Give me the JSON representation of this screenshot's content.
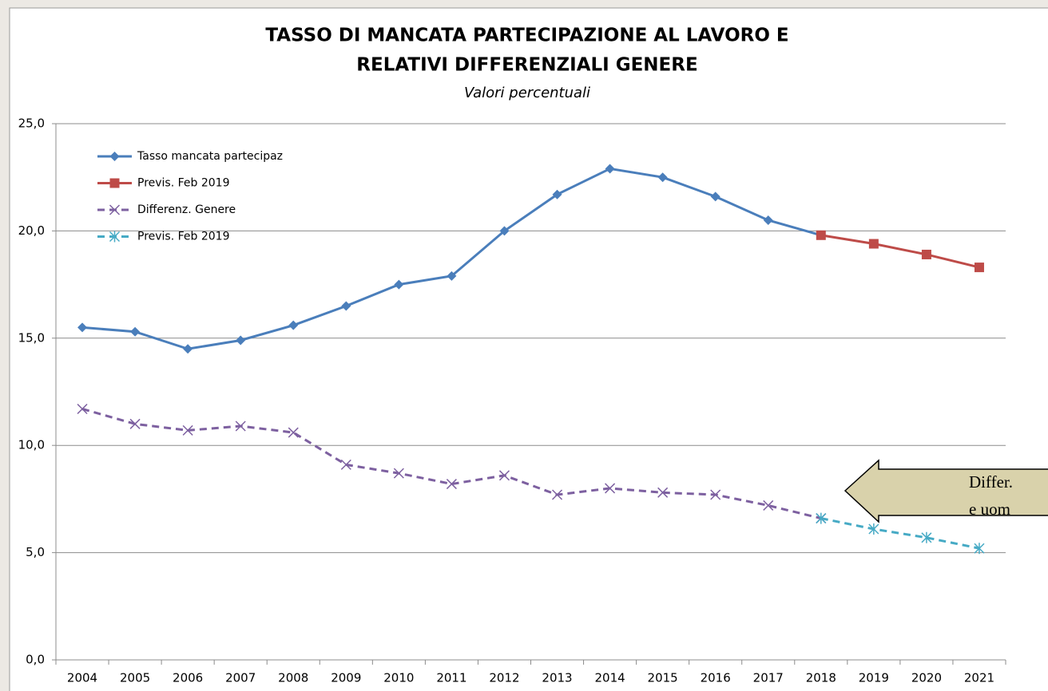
{
  "chart_data": {
    "type": "line",
    "title": [
      "TASSO DI MANCATA PARTECIPAZIONE AL LAVORO E",
      "RELATIVI DIFFERENZIALI GENERE"
    ],
    "subtitle": "Valori percentuali",
    "categories": [
      "2004",
      "2005",
      "2006",
      "2007",
      "2008",
      "2009",
      "2010",
      "2011",
      "2012",
      "2013",
      "2014",
      "2015",
      "2016",
      "2017",
      "2018",
      "2019",
      "2020",
      "2021"
    ],
    "series": [
      {
        "name": "Tasso mancata partecipaz",
        "color": "#4a7ebb",
        "marker": "diamond",
        "dashed": false,
        "values": [
          15.5,
          15.3,
          14.5,
          14.9,
          15.6,
          16.5,
          17.5,
          17.9,
          20.0,
          21.7,
          22.9,
          22.5,
          21.6,
          20.5,
          19.8,
          null,
          null,
          null
        ]
      },
      {
        "name": "Previs. Feb 2019",
        "color": "#be4b48",
        "marker": "square",
        "dashed": false,
        "values": [
          null,
          null,
          null,
          null,
          null,
          null,
          null,
          null,
          null,
          null,
          null,
          null,
          null,
          null,
          19.8,
          19.4,
          18.9,
          18.3
        ]
      },
      {
        "name": "Differenz. Genere",
        "color": "#7d60a0",
        "marker": "x",
        "dashed": true,
        "values": [
          11.7,
          11.0,
          10.7,
          10.9,
          10.6,
          9.1,
          8.7,
          8.2,
          8.6,
          7.7,
          8.0,
          7.8,
          7.7,
          7.2,
          6.6,
          null,
          null,
          null
        ]
      },
      {
        "name": "Previs. Feb 2019",
        "color": "#46aac5",
        "marker": "asterisk",
        "dashed": true,
        "values": [
          null,
          null,
          null,
          null,
          null,
          null,
          null,
          null,
          null,
          null,
          null,
          null,
          null,
          null,
          6.6,
          6.1,
          5.7,
          5.2
        ]
      }
    ],
    "ylim": [
      0,
      25
    ],
    "yticks": [
      {
        "value": 0,
        "label": "0,0"
      },
      {
        "value": 5,
        "label": "5,0"
      },
      {
        "value": 10,
        "label": "10,0"
      },
      {
        "value": 15,
        "label": "15,0"
      },
      {
        "value": 20,
        "label": "20,0"
      },
      {
        "value": 25,
        "label": "25,0"
      }
    ],
    "grid": true,
    "legend": "upper left",
    "annotation": [
      "Differ.",
      "e uom"
    ]
  }
}
